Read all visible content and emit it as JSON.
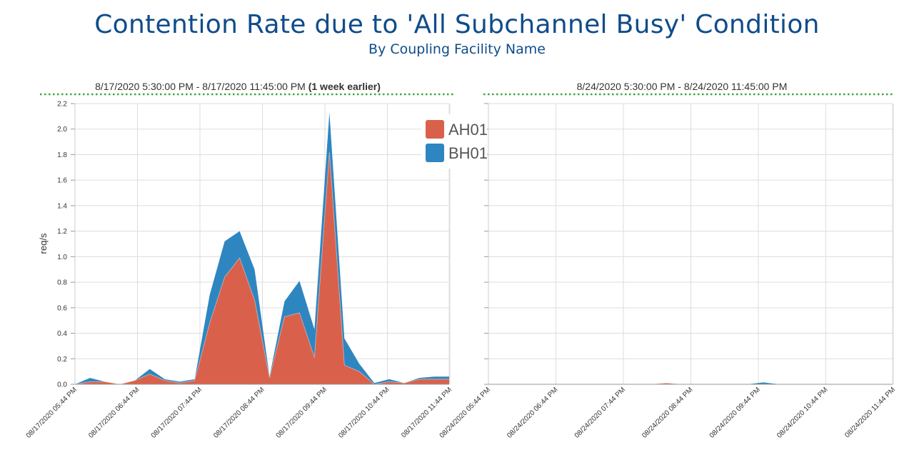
{
  "title": "Contention Rate due to 'All Subchannel Busy' Condition",
  "subtitle": "By Coupling Facility Name",
  "colors": {
    "AH01": "#d9614b",
    "BH01": "#2e86c1",
    "title": "#0f4c8a",
    "divider": "#3aa83a"
  },
  "panels": [
    {
      "label": "8/17/2020 5:30:00 PM - 8/17/2020 11:45:00 PM",
      "label_bold": " (1 week earlier)"
    },
    {
      "label": "8/24/2020 5:30:00 PM - 8/24/2020 11:45:00 PM",
      "label_bold": ""
    }
  ],
  "chart_data": [
    {
      "type": "area",
      "stacked": true,
      "title": "8/17/2020 5:30:00 PM - 8/17/2020 11:45:00 PM (1 week earlier)",
      "xlabel": "",
      "ylabel": "req/s",
      "ylim": [
        0,
        2.2
      ],
      "yticks": [
        "0.0",
        "0.2",
        "0.4",
        "0.6",
        "0.8",
        "1.0",
        "1.2",
        "1.4",
        "1.6",
        "1.8",
        "2.0",
        "2.2"
      ],
      "xticks": [
        "08/17/2020 05:44 PM",
        "08/17/2020 06:44 PM",
        "08/17/2020 07:44 PM",
        "08/17/2020 08:44 PM",
        "08/17/2020 09:44 PM",
        "08/17/2020 10:44 PM",
        "08/17/2020 11:44 PM"
      ],
      "x_minutes": [
        0,
        15,
        30,
        45,
        60,
        75,
        90,
        105,
        120,
        135,
        150,
        165,
        180,
        195,
        210,
        225,
        240,
        255,
        270,
        285,
        300,
        315,
        330,
        345,
        360,
        375
      ],
      "series": [
        {
          "name": "AH01",
          "values": [
            0.0,
            0.02,
            0.02,
            0.0,
            0.03,
            0.08,
            0.03,
            0.01,
            0.03,
            0.48,
            0.84,
            0.99,
            0.66,
            0.05,
            0.53,
            0.56,
            0.21,
            1.82,
            0.15,
            0.1,
            0.0,
            0.02,
            0.01,
            0.04,
            0.04,
            0.04
          ]
        },
        {
          "name": "BH01",
          "values": [
            0.0,
            0.03,
            0.0,
            0.0,
            0.0,
            0.04,
            0.01,
            0.01,
            0.01,
            0.22,
            0.28,
            0.21,
            0.24,
            0.01,
            0.12,
            0.25,
            0.22,
            0.31,
            0.21,
            0.06,
            0.01,
            0.02,
            0.0,
            0.01,
            0.02,
            0.02
          ]
        }
      ]
    },
    {
      "type": "area",
      "stacked": true,
      "title": "8/24/2020 5:30:00 PM - 8/24/2020 11:45:00 PM",
      "xlabel": "",
      "ylabel": "",
      "ylim": [
        0,
        2.2
      ],
      "xticks": [
        "08/24/2020 05:44 PM",
        "08/24/2020 06:44 PM",
        "08/24/2020 07:44 PM",
        "08/24/2020 08:44 PM",
        "08/24/2020 09:44 PM",
        "08/24/2020 10:44 PM",
        "08/24/2020 11:44 PM"
      ],
      "x_minutes": [
        0,
        15,
        30,
        45,
        60,
        75,
        90,
        105,
        120,
        135,
        150,
        165,
        180,
        195,
        210,
        225,
        240,
        255,
        270,
        285,
        300,
        315,
        330,
        345,
        360,
        375
      ],
      "series": [
        {
          "name": "AH01",
          "values": [
            0,
            0,
            0,
            0,
            0,
            0,
            0,
            0,
            0,
            0,
            0,
            0.01,
            0,
            0,
            0,
            0,
            0,
            0,
            0,
            0,
            0,
            0,
            0,
            0,
            0,
            0
          ]
        },
        {
          "name": "BH01",
          "values": [
            0,
            0,
            0,
            0,
            0,
            0,
            0,
            0,
            0,
            0,
            0,
            0,
            0,
            0,
            0,
            0,
            0,
            0.015,
            0,
            0,
            0,
            0,
            0,
            0,
            0,
            0
          ]
        }
      ]
    }
  ],
  "legend": [
    {
      "name": "AH01",
      "color": "#d9614b"
    },
    {
      "name": "BH01",
      "color": "#2e86c1"
    }
  ]
}
